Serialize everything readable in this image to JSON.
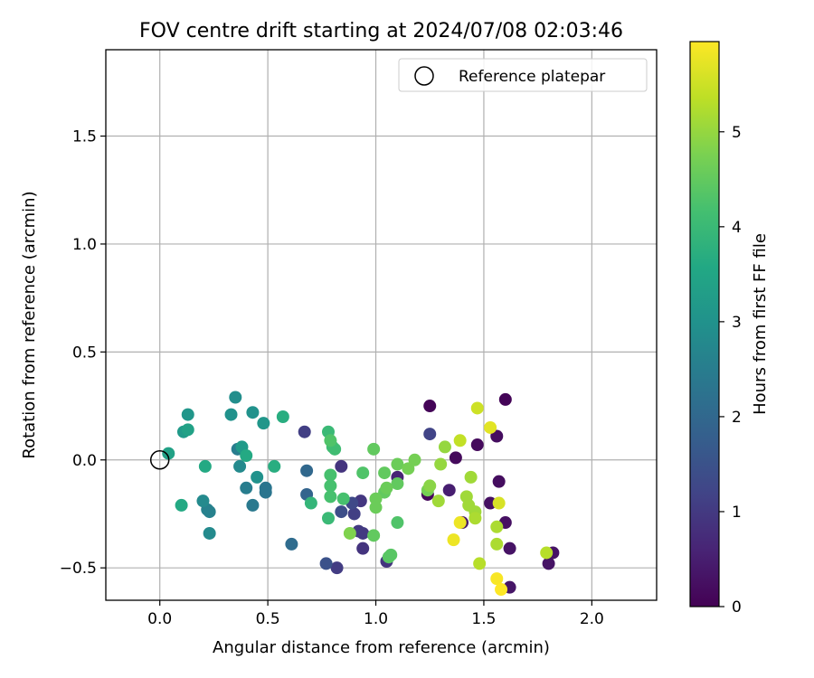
{
  "chart_data": {
    "type": "scatter",
    "title": "FOV centre drift starting at 2024/07/08 02:03:46",
    "xlabel": "Angular distance from reference (arcmin)",
    "ylabel": "Rotation from reference (arcmin)",
    "xlim": [
      -0.25,
      2.3
    ],
    "ylim": [
      -0.65,
      1.9
    ],
    "xticks": [
      0.0,
      0.5,
      1.0,
      1.5,
      2.0
    ],
    "xtick_labels": [
      "0.0",
      "0.5",
      "1.0",
      "1.5",
      "2.0"
    ],
    "yticks": [
      -0.5,
      0.0,
      0.5,
      1.0,
      1.5
    ],
    "ytick_labels": [
      "−0.5",
      "0.0",
      "0.5",
      "1.0",
      "1.5"
    ],
    "grid": true,
    "legend": {
      "placement": "top-right",
      "label": "Reference platepar"
    },
    "reference_point": {
      "x": 0.0,
      "y": 0.0
    },
    "colorbar": {
      "label": "Hours from first FF file",
      "colormap": "viridis",
      "range": [
        0,
        5.95
      ],
      "ticks": [
        0,
        1,
        2,
        3,
        4,
        5
      ],
      "tick_labels": [
        "0",
        "1",
        "2",
        "3",
        "4",
        "5"
      ]
    },
    "points": [
      {
        "x": 1.25,
        "y": 0.25,
        "h": 0.05
      },
      {
        "x": 1.6,
        "y": 0.28,
        "h": 0.05
      },
      {
        "x": 1.24,
        "y": -0.16,
        "h": 0.1
      },
      {
        "x": 1.37,
        "y": 0.01,
        "h": 0.15
      },
      {
        "x": 1.47,
        "y": 0.07,
        "h": 0.15
      },
      {
        "x": 1.56,
        "y": 0.11,
        "h": 0.2
      },
      {
        "x": 1.57,
        "y": -0.1,
        "h": 0.2
      },
      {
        "x": 1.53,
        "y": -0.2,
        "h": 0.25
      },
      {
        "x": 1.6,
        "y": -0.29,
        "h": 0.25
      },
      {
        "x": 1.62,
        "y": -0.41,
        "h": 0.3
      },
      {
        "x": 1.8,
        "y": -0.48,
        "h": 0.3
      },
      {
        "x": 1.82,
        "y": -0.43,
        "h": 0.3
      },
      {
        "x": 1.62,
        "y": -0.59,
        "h": 0.35
      },
      {
        "x": 1.4,
        "y": -0.29,
        "h": 0.4
      },
      {
        "x": 1.34,
        "y": -0.14,
        "h": 0.5
      },
      {
        "x": 1.1,
        "y": -0.08,
        "h": 0.6
      },
      {
        "x": 1.05,
        "y": -0.47,
        "h": 0.9
      },
      {
        "x": 0.94,
        "y": -0.41,
        "h": 0.9
      },
      {
        "x": 0.84,
        "y": -0.03,
        "h": 0.9
      },
      {
        "x": 0.93,
        "y": -0.19,
        "h": 0.95
      },
      {
        "x": 0.92,
        "y": -0.33,
        "h": 1.0
      },
      {
        "x": 0.94,
        "y": -0.34,
        "h": 1.0
      },
      {
        "x": 0.82,
        "y": -0.5,
        "h": 1.05
      },
      {
        "x": 0.9,
        "y": -0.25,
        "h": 1.1
      },
      {
        "x": 0.67,
        "y": 0.13,
        "h": 1.1
      },
      {
        "x": 0.89,
        "y": -0.2,
        "h": 1.3
      },
      {
        "x": 1.25,
        "y": 0.12,
        "h": 1.2
      },
      {
        "x": 0.84,
        "y": -0.24,
        "h": 1.4
      },
      {
        "x": 0.77,
        "y": -0.48,
        "h": 1.5
      },
      {
        "x": 0.68,
        "y": -0.16,
        "h": 1.9
      },
      {
        "x": 0.68,
        "y": -0.05,
        "h": 2.0
      },
      {
        "x": 0.61,
        "y": -0.39,
        "h": 2.1
      },
      {
        "x": 0.49,
        "y": -0.13,
        "h": 2.3
      },
      {
        "x": 0.49,
        "y": -0.15,
        "h": 2.3
      },
      {
        "x": 0.43,
        "y": -0.21,
        "h": 2.4
      },
      {
        "x": 0.4,
        "y": -0.13,
        "h": 2.5
      },
      {
        "x": 0.36,
        "y": 0.05,
        "h": 2.5
      },
      {
        "x": 0.22,
        "y": -0.23,
        "h": 2.6
      },
      {
        "x": 0.23,
        "y": -0.24,
        "h": 2.6
      },
      {
        "x": 0.2,
        "y": -0.19,
        "h": 2.8
      },
      {
        "x": 0.23,
        "y": -0.34,
        "h": 2.8
      },
      {
        "x": 0.37,
        "y": -0.03,
        "h": 2.8
      },
      {
        "x": 0.35,
        "y": 0.29,
        "h": 2.9
      },
      {
        "x": 0.33,
        "y": 0.21,
        "h": 3.0
      },
      {
        "x": 0.43,
        "y": 0.22,
        "h": 3.0
      },
      {
        "x": 0.45,
        "y": -0.08,
        "h": 3.0
      },
      {
        "x": 0.48,
        "y": 0.17,
        "h": 3.1
      },
      {
        "x": 0.38,
        "y": 0.06,
        "h": 3.2
      },
      {
        "x": 0.13,
        "y": 0.21,
        "h": 3.1
      },
      {
        "x": 0.11,
        "y": 0.13,
        "h": 3.2
      },
      {
        "x": 0.13,
        "y": 0.14,
        "h": 3.4
      },
      {
        "x": 0.04,
        "y": 0.03,
        "h": 3.4
      },
      {
        "x": 0.21,
        "y": -0.03,
        "h": 3.6
      },
      {
        "x": 0.1,
        "y": -0.21,
        "h": 3.6
      },
      {
        "x": 0.4,
        "y": 0.02,
        "h": 3.6
      },
      {
        "x": 0.53,
        "y": -0.03,
        "h": 3.7
      },
      {
        "x": 0.57,
        "y": 0.2,
        "h": 3.7
      },
      {
        "x": 0.7,
        "y": -0.2,
        "h": 3.9
      },
      {
        "x": 0.78,
        "y": -0.27,
        "h": 4.0
      },
      {
        "x": 0.78,
        "y": 0.13,
        "h": 4.0
      },
      {
        "x": 0.81,
        "y": 0.05,
        "h": 4.1
      },
      {
        "x": 0.8,
        "y": 0.06,
        "h": 4.1
      },
      {
        "x": 0.79,
        "y": -0.07,
        "h": 4.2
      },
      {
        "x": 0.79,
        "y": -0.12,
        "h": 4.2
      },
      {
        "x": 0.79,
        "y": -0.17,
        "h": 4.2
      },
      {
        "x": 0.85,
        "y": -0.18,
        "h": 4.2
      },
      {
        "x": 0.79,
        "y": 0.09,
        "h": 4.3
      },
      {
        "x": 0.94,
        "y": -0.06,
        "h": 4.3
      },
      {
        "x": 1.1,
        "y": -0.29,
        "h": 4.3
      },
      {
        "x": 1.06,
        "y": -0.45,
        "h": 4.4
      },
      {
        "x": 1.07,
        "y": -0.44,
        "h": 4.4
      },
      {
        "x": 0.99,
        "y": -0.35,
        "h": 4.5
      },
      {
        "x": 0.99,
        "y": 0.05,
        "h": 4.5
      },
      {
        "x": 1.04,
        "y": -0.06,
        "h": 4.5
      },
      {
        "x": 1.04,
        "y": -0.15,
        "h": 4.5
      },
      {
        "x": 1.1,
        "y": -0.11,
        "h": 4.5
      },
      {
        "x": 1.05,
        "y": -0.13,
        "h": 4.6
      },
      {
        "x": 1.0,
        "y": -0.18,
        "h": 4.6
      },
      {
        "x": 1.0,
        "y": -0.22,
        "h": 4.6
      },
      {
        "x": 1.1,
        "y": -0.02,
        "h": 4.6
      },
      {
        "x": 1.15,
        "y": -0.04,
        "h": 4.7
      },
      {
        "x": 1.18,
        "y": 0.0,
        "h": 4.7
      },
      {
        "x": 1.24,
        "y": -0.14,
        "h": 4.7
      },
      {
        "x": 0.88,
        "y": -0.34,
        "h": 4.8
      },
      {
        "x": 1.25,
        "y": -0.12,
        "h": 4.9
      },
      {
        "x": 1.3,
        "y": -0.02,
        "h": 5.0
      },
      {
        "x": 1.32,
        "y": 0.06,
        "h": 5.0
      },
      {
        "x": 1.29,
        "y": -0.19,
        "h": 5.1
      },
      {
        "x": 1.42,
        "y": -0.17,
        "h": 5.1
      },
      {
        "x": 1.43,
        "y": -0.21,
        "h": 5.1
      },
      {
        "x": 1.44,
        "y": -0.08,
        "h": 5.1
      },
      {
        "x": 1.46,
        "y": -0.24,
        "h": 5.1
      },
      {
        "x": 1.46,
        "y": -0.27,
        "h": 5.2
      },
      {
        "x": 1.56,
        "y": -0.31,
        "h": 5.2
      },
      {
        "x": 1.56,
        "y": -0.39,
        "h": 5.2
      },
      {
        "x": 1.48,
        "y": -0.48,
        "h": 5.3
      },
      {
        "x": 1.79,
        "y": -0.43,
        "h": 5.3
      },
      {
        "x": 1.39,
        "y": 0.09,
        "h": 5.4
      },
      {
        "x": 1.47,
        "y": 0.24,
        "h": 5.5
      },
      {
        "x": 1.57,
        "y": -0.2,
        "h": 5.6
      },
      {
        "x": 1.53,
        "y": 0.15,
        "h": 5.7
      },
      {
        "x": 1.39,
        "y": -0.29,
        "h": 5.8
      },
      {
        "x": 1.36,
        "y": -0.37,
        "h": 5.8
      },
      {
        "x": 1.56,
        "y": -0.55,
        "h": 5.9
      },
      {
        "x": 1.58,
        "y": -0.6,
        "h": 5.95
      }
    ]
  }
}
